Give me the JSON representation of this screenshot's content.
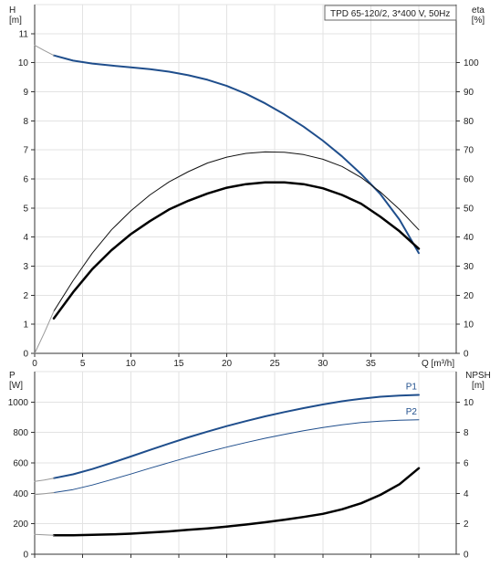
{
  "chart_data": [
    {
      "type": "line",
      "title": "TPD 65-120/2, 3*400 V, 50Hz",
      "xlabel": "Q [m³/h]",
      "ylabel_left": [
        "H",
        "[m]"
      ],
      "ylabel_right": [
        "eta",
        "[%]"
      ],
      "xlim": [
        0,
        40
      ],
      "x_ticks": [
        "0",
        "5",
        "10",
        "15",
        "20",
        "25",
        "30",
        "35"
      ],
      "ylim_left": [
        0,
        12
      ],
      "y_ticks_left": [
        "0",
        "1",
        "2",
        "3",
        "4",
        "5",
        "6",
        "7",
        "8",
        "9",
        "10",
        "11"
      ],
      "ylim_right": [
        0,
        120
      ],
      "y_ticks_right": [
        "0",
        "10",
        "20",
        "30",
        "40",
        "50",
        "60",
        "70",
        "80",
        "90",
        "100"
      ],
      "grid": true,
      "series": [
        {
          "id": "head",
          "axis": "left",
          "color": "#1f4e8c",
          "width": 2,
          "x": [
            2,
            4,
            6,
            8,
            10,
            12,
            14,
            16,
            18,
            20,
            22,
            24,
            26,
            28,
            30,
            32,
            34,
            36,
            38,
            40
          ],
          "y": [
            10.25,
            10.07,
            9.97,
            9.9,
            9.84,
            9.78,
            9.69,
            9.57,
            9.41,
            9.2,
            8.93,
            8.6,
            8.22,
            7.8,
            7.32,
            6.78,
            6.17,
            5.48,
            4.6,
            3.45
          ]
        },
        {
          "id": "head-extrapolated",
          "axis": "left",
          "color": "#999999",
          "width": 1,
          "x": [
            0,
            1,
            2
          ],
          "y": [
            10.6,
            10.42,
            10.25
          ]
        },
        {
          "id": "eta-1",
          "axis": "right",
          "color": "#111111",
          "width": 1,
          "x": [
            2,
            4,
            6,
            8,
            10,
            12,
            14,
            16,
            18,
            20,
            22,
            24,
            26,
            28,
            30,
            32,
            34,
            36,
            38,
            40
          ],
          "y": [
            14.5,
            25,
            34.5,
            42.5,
            49,
            54.5,
            59,
            62.5,
            65.5,
            67.5,
            68.8,
            69.3,
            69.2,
            68.4,
            66.8,
            64.3,
            60.5,
            55.5,
            49.5,
            42.5
          ]
        },
        {
          "id": "eta-2",
          "axis": "right",
          "color": "#000000",
          "width": 2.5,
          "x": [
            2,
            4,
            6,
            8,
            10,
            12,
            14,
            16,
            18,
            20,
            22,
            24,
            26,
            28,
            30,
            32,
            34,
            36,
            38,
            40
          ],
          "y": [
            12,
            21,
            29,
            35.5,
            41,
            45.5,
            49.5,
            52.5,
            55,
            57,
            58.2,
            58.8,
            58.8,
            58.2,
            56.8,
            54.5,
            51.5,
            47,
            42,
            36
          ]
        },
        {
          "id": "eta-extrapolated",
          "axis": "right",
          "color": "#999999",
          "width": 1,
          "x": [
            0,
            1,
            2
          ],
          "y": [
            0,
            7,
            14.5
          ]
        }
      ]
    },
    {
      "type": "line",
      "xlim": [
        0,
        40
      ],
      "ylabel_left": [
        "P",
        "[W]"
      ],
      "ylabel_right": [
        "NPSH",
        "[m]"
      ],
      "ylim_left": [
        0,
        1200
      ],
      "y_ticks_left": [
        "0",
        "200",
        "400",
        "600",
        "800",
        "1000"
      ],
      "ylim_right": [
        0,
        12
      ],
      "y_ticks_right": [
        "0",
        "2",
        "4",
        "6",
        "8",
        "10"
      ],
      "grid": true,
      "series": [
        {
          "id": "p1",
          "name": "P1",
          "axis": "left",
          "color": "#1f4e8c",
          "width": 2,
          "x": [
            2,
            4,
            6,
            8,
            10,
            12,
            14,
            16,
            18,
            20,
            22,
            24,
            26,
            28,
            30,
            32,
            34,
            36,
            38,
            40
          ],
          "y": [
            500,
            525,
            560,
            600,
            642,
            685,
            727,
            768,
            806,
            842,
            875,
            906,
            934,
            960,
            984,
            1005,
            1022,
            1035,
            1043,
            1047
          ]
        },
        {
          "id": "p1-extrapolated",
          "axis": "left",
          "color": "#999999",
          "width": 1,
          "x": [
            0,
            1,
            2
          ],
          "y": [
            478,
            488,
            500
          ]
        },
        {
          "id": "p2",
          "name": "P2",
          "axis": "left",
          "color": "#1f4e8c",
          "width": 1,
          "x": [
            2,
            4,
            6,
            8,
            10,
            12,
            14,
            16,
            18,
            20,
            22,
            24,
            26,
            28,
            30,
            32,
            34,
            36,
            38,
            40
          ],
          "y": [
            405,
            425,
            455,
            490,
            527,
            565,
            602,
            638,
            672,
            704,
            734,
            762,
            788,
            812,
            833,
            851,
            865,
            875,
            881,
            883
          ]
        },
        {
          "id": "p2-extrapolated",
          "axis": "left",
          "color": "#999999",
          "width": 1,
          "x": [
            0,
            1,
            2
          ],
          "y": [
            392,
            398,
            405
          ]
        },
        {
          "id": "npsh",
          "axis": "right",
          "color": "#000000",
          "width": 2.5,
          "x": [
            2,
            4,
            6,
            8,
            10,
            12,
            14,
            16,
            18,
            20,
            22,
            24,
            26,
            28,
            30,
            32,
            34,
            36,
            38,
            40
          ],
          "y": [
            1.25,
            1.25,
            1.27,
            1.3,
            1.35,
            1.42,
            1.5,
            1.6,
            1.7,
            1.82,
            1.95,
            2.1,
            2.27,
            2.45,
            2.65,
            2.95,
            3.35,
            3.9,
            4.6,
            5.65
          ]
        },
        {
          "id": "npsh-extrapolated",
          "axis": "right",
          "color": "#999999",
          "width": 1,
          "x": [
            0,
            1,
            2
          ],
          "y": [
            1.3,
            1.27,
            1.25
          ]
        }
      ]
    }
  ]
}
